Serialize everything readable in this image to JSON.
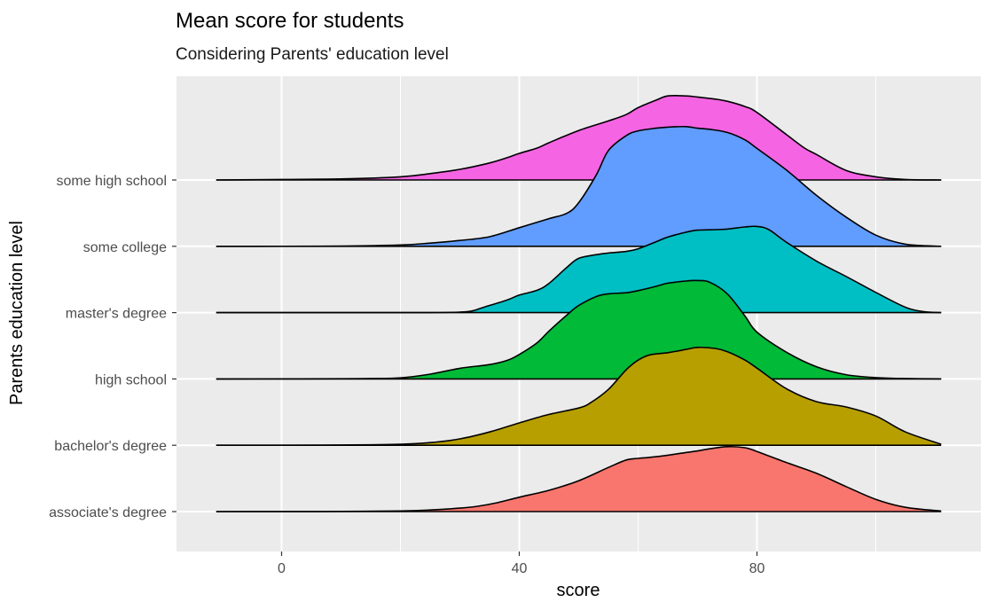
{
  "chart_data": {
    "type": "ridgeline",
    "title": "Mean score for students",
    "subtitle": "Considering Parents' education level",
    "xlabel": "score",
    "ylabel": "Parents education level",
    "xlim": [
      -11,
      111
    ],
    "x_ticks": [
      0,
      40,
      80
    ],
    "grid": true,
    "legend": "none",
    "categories": [
      "associate's degree",
      "bachelor's degree",
      "high school",
      "master's degree",
      "some college",
      "some high school"
    ],
    "colors": [
      "#F8766D",
      "#B79F00",
      "#00BA38",
      "#00BFC4",
      "#619CFF",
      "#F564E3"
    ],
    "series": [
      {
        "x": [
          -11,
          0,
          10,
          20,
          25,
          30,
          33,
          36,
          40,
          45,
          50,
          55,
          58,
          60,
          62,
          65,
          68,
          70,
          72,
          75,
          78,
          80,
          85,
          90,
          95,
          100,
          105,
          111
        ],
        "y": [
          0,
          0.001,
          0.003,
          0.012,
          0.03,
          0.065,
          0.1,
          0.16,
          0.27,
          0.4,
          0.58,
          0.83,
          0.97,
          1.0,
          1.02,
          1.06,
          1.11,
          1.14,
          1.18,
          1.22,
          1.2,
          1.13,
          0.92,
          0.72,
          0.47,
          0.23,
          0.08,
          0.01
        ]
      },
      {
        "x": [
          -11,
          0,
          10,
          20,
          25,
          30,
          35,
          40,
          45,
          50,
          52,
          55,
          58,
          60,
          62,
          65,
          68,
          70,
          73,
          75,
          78,
          80,
          85,
          90,
          95,
          100,
          105,
          111
        ],
        "y": [
          0,
          0.001,
          0.005,
          0.02,
          0.05,
          0.12,
          0.25,
          0.42,
          0.58,
          0.7,
          0.8,
          1.05,
          1.42,
          1.6,
          1.7,
          1.74,
          1.8,
          1.84,
          1.82,
          1.76,
          1.6,
          1.45,
          1.06,
          0.82,
          0.72,
          0.55,
          0.25,
          0.02
        ]
      },
      {
        "x": [
          -11,
          0,
          10,
          15,
          20,
          25,
          30,
          35,
          38,
          40,
          43,
          45,
          48,
          50,
          53,
          55,
          58,
          60,
          63,
          65,
          68,
          70,
          72,
          75,
          78,
          80,
          85,
          90,
          95,
          100,
          105,
          111
        ],
        "y": [
          0,
          0.001,
          0.004,
          0.008,
          0.02,
          0.09,
          0.2,
          0.27,
          0.35,
          0.46,
          0.68,
          0.9,
          1.2,
          1.38,
          1.55,
          1.6,
          1.62,
          1.66,
          1.74,
          1.8,
          1.84,
          1.85,
          1.82,
          1.6,
          1.18,
          0.88,
          0.5,
          0.23,
          0.08,
          0.025,
          0.008,
          0.001
        ]
      },
      {
        "x": [
          -11,
          20,
          25,
          30,
          32,
          34,
          38,
          40,
          43,
          45,
          48,
          50,
          53,
          55,
          58,
          60,
          63,
          65,
          68,
          70,
          73,
          75,
          78,
          80,
          82,
          85,
          90,
          95,
          100,
          105,
          108,
          111
        ],
        "y": [
          0,
          0,
          0.001,
          0.01,
          0.03,
          0.1,
          0.24,
          0.33,
          0.42,
          0.55,
          0.85,
          1.02,
          1.09,
          1.12,
          1.15,
          1.2,
          1.33,
          1.42,
          1.51,
          1.55,
          1.56,
          1.57,
          1.61,
          1.62,
          1.56,
          1.32,
          0.97,
          0.68,
          0.38,
          0.1,
          0.02,
          0.001
        ]
      },
      {
        "x": [
          -11,
          0,
          10,
          20,
          25,
          30,
          35,
          40,
          45,
          48,
          50,
          53,
          55,
          58,
          60,
          63,
          65,
          68,
          70,
          72,
          75,
          78,
          80,
          85,
          90,
          95,
          100,
          105,
          111
        ],
        "y": [
          0,
          0.001,
          0.004,
          0.025,
          0.06,
          0.11,
          0.18,
          0.35,
          0.52,
          0.62,
          0.82,
          1.35,
          1.8,
          2.08,
          2.17,
          2.22,
          2.24,
          2.25,
          2.22,
          2.2,
          2.14,
          2.0,
          1.84,
          1.43,
          0.96,
          0.55,
          0.21,
          0.04,
          0.001
        ]
      },
      {
        "x": [
          -11,
          0,
          10,
          20,
          25,
          30,
          35,
          38,
          40,
          43,
          45,
          50,
          55,
          58,
          60,
          63,
          65,
          68,
          70,
          73,
          75,
          78,
          80,
          85,
          88,
          90,
          95,
          100,
          105,
          111
        ],
        "y": [
          0,
          0.01,
          0.02,
          0.06,
          0.12,
          0.2,
          0.32,
          0.42,
          0.5,
          0.6,
          0.7,
          0.93,
          1.11,
          1.23,
          1.36,
          1.5,
          1.58,
          1.58,
          1.56,
          1.52,
          1.48,
          1.38,
          1.27,
          0.85,
          0.6,
          0.48,
          0.18,
          0.06,
          0.01,
          0
        ]
      }
    ]
  }
}
